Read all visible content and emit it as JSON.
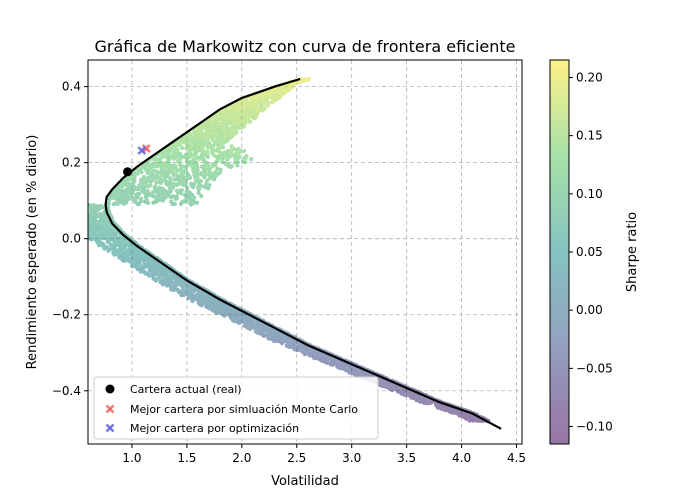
{
  "chart_data": {
    "type": "scatter",
    "title": "Gráfica de Markowitz con curva de frontera eficiente",
    "xlabel": "Volatilidad",
    "ylabel": "Rendimiento esperado (en % diario)",
    "xlim": [
      0.6,
      4.55
    ],
    "ylim": [
      -0.54,
      0.47
    ],
    "x_ticks": [
      {
        "value": 1.0,
        "label": "1.0"
      },
      {
        "value": 1.5,
        "label": "1.5"
      },
      {
        "value": 2.0,
        "label": "2.0"
      },
      {
        "value": 2.5,
        "label": "2.5"
      },
      {
        "value": 3.0,
        "label": "3.0"
      },
      {
        "value": 3.5,
        "label": "3.5"
      },
      {
        "value": 4.0,
        "label": "4.0"
      },
      {
        "value": 4.5,
        "label": "4.5"
      }
    ],
    "y_ticks": [
      {
        "value": -0.4,
        "label": "−0.4"
      },
      {
        "value": -0.2,
        "label": "−0.2"
      },
      {
        "value": 0.0,
        "label": "0.0"
      },
      {
        "value": 0.2,
        "label": "0.2"
      },
      {
        "value": 0.4,
        "label": "0.4"
      }
    ],
    "grid": true,
    "legend_position": "lower-left",
    "frontier": {
      "color": "#000000",
      "x": [
        2.53,
        2.3,
        2.0,
        1.8,
        1.6,
        1.4,
        1.2,
        1.05,
        0.92,
        0.82,
        0.77,
        0.76,
        0.77,
        0.82,
        0.92,
        1.05,
        1.25,
        1.5,
        1.8,
        2.2,
        2.6,
        3.0,
        3.4,
        3.8,
        4.1,
        4.36
      ],
      "y": [
        0.42,
        0.4,
        0.37,
        0.34,
        0.3,
        0.26,
        0.22,
        0.19,
        0.16,
        0.13,
        0.11,
        0.09,
        0.07,
        0.04,
        0.01,
        -0.02,
        -0.06,
        -0.11,
        -0.16,
        -0.22,
        -0.28,
        -0.33,
        -0.38,
        -0.43,
        -0.46,
        -0.5
      ]
    },
    "simulation": {
      "colorbar_label": "Sharpe ratio",
      "colorbar_ticks": [
        {
          "value": -0.1,
          "label": "−0.10"
        },
        {
          "value": -0.05,
          "label": "−0.05"
        },
        {
          "value": 0.0,
          "label": "0.00"
        },
        {
          "value": 0.05,
          "label": "0.05"
        },
        {
          "value": 0.1,
          "label": "0.10"
        },
        {
          "value": 0.15,
          "label": "0.15"
        },
        {
          "value": 0.2,
          "label": "0.20"
        }
      ],
      "sharpe_range": [
        -0.115,
        0.215
      ],
      "colormap": [
        "#440154",
        "#3b528b",
        "#21918c",
        "#5ec962",
        "#fde725"
      ],
      "point_count": 4500,
      "band_count": 30
    },
    "series": [
      {
        "name": "Cartera actual (real)",
        "marker": "circle",
        "color": "#000000",
        "x": [
          0.96
        ],
        "y": [
          0.176
        ]
      },
      {
        "name": "Mejor cartera por simluación Monte Carlo",
        "marker": "x",
        "color": "#f06060",
        "x": [
          1.13
        ],
        "y": [
          0.237
        ]
      },
      {
        "name": "Mejor cartera por optimización",
        "marker": "x",
        "color": "#6464e0",
        "x": [
          1.09
        ],
        "y": [
          0.232
        ]
      }
    ]
  }
}
